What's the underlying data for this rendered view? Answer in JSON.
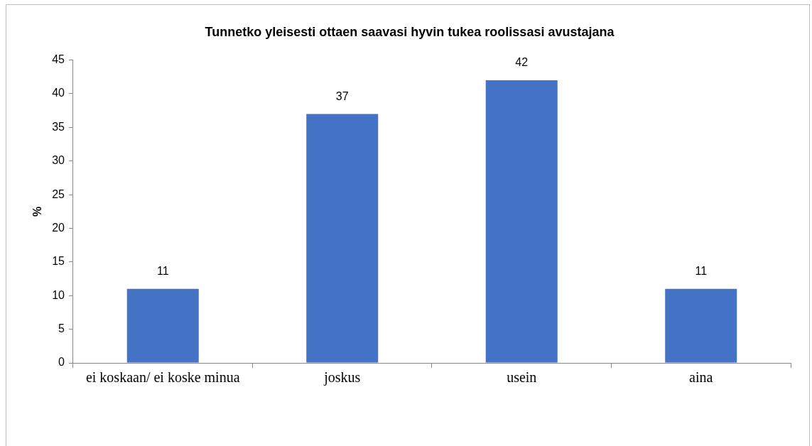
{
  "chart_data": {
    "type": "bar",
    "title": "Tunnetko yleisesti ottaen saavasi hyvin tukea roolissasi avustajana",
    "ylabel": "%",
    "categories": [
      "ei koskaan/ ei koske minua",
      "joskus",
      "usein",
      "aina"
    ],
    "values": [
      11,
      37,
      42,
      11
    ],
    "color": "#4472c4",
    "ylim": [
      0,
      45
    ],
    "yticks": [
      0,
      5,
      10,
      15,
      20,
      25,
      30,
      35,
      40,
      45
    ],
    "grid": false,
    "legend": false,
    "data_labels": true
  }
}
